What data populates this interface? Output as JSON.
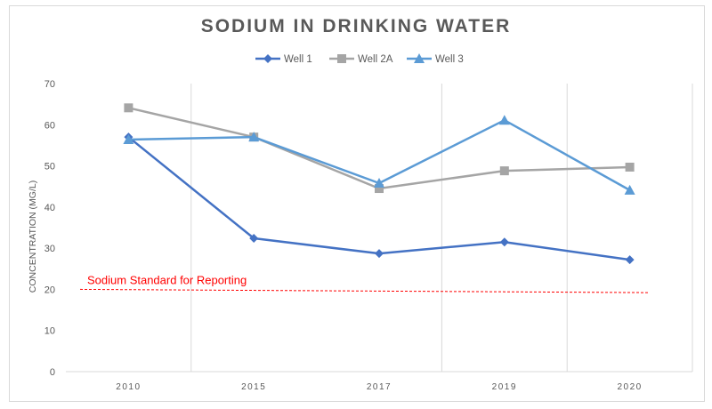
{
  "chart_data": {
    "type": "line",
    "title": "SODIUM IN DRINKING WATER",
    "xlabel": "",
    "ylabel": "CONCENTRATION (MG/L)",
    "categories": [
      "2010",
      "2015",
      "2017",
      "2019",
      "2020"
    ],
    "ylim": [
      0,
      70
    ],
    "yticks": [
      0,
      10,
      20,
      30,
      40,
      50,
      60,
      70
    ],
    "legend_position": "top",
    "series": [
      {
        "name": "Well 1",
        "values": [
          57,
          32.4,
          28.7,
          31.5,
          27.2
        ],
        "color": "#4472c4",
        "marker": "diamond"
      },
      {
        "name": "Well 2A",
        "values": [
          64.1,
          57,
          44.5,
          48.8,
          49.7
        ],
        "color": "#a5a5a5",
        "marker": "square"
      },
      {
        "name": "Well 3",
        "values": [
          56.4,
          57,
          45.8,
          61.1,
          44.1
        ],
        "color": "#5b9bd5",
        "marker": "triangle"
      }
    ],
    "annotations": [
      {
        "text": "Sodium Standard for Reporting",
        "type": "dashed-line",
        "value_start": 20,
        "value_end": 19.2,
        "color": "#ff0000"
      }
    ]
  }
}
